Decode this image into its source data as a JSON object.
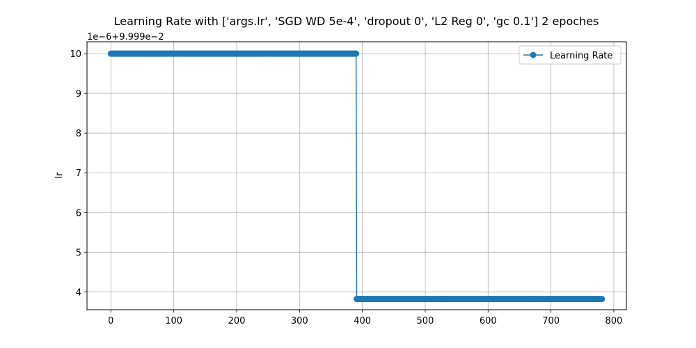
{
  "chart_data": {
    "type": "line",
    "title": "Learning Rate with ['args.lr', 'SGD WD 5e-4', 'dropout 0', 'L2 Reg 0', 'gc 0.1'] 2 epoches",
    "xlabel": "",
    "ylabel": "lr",
    "y_offset_text": "1e−6+9.999e−2",
    "xlim": [
      -38,
      820
    ],
    "ylim": [
      3.55,
      10.3
    ],
    "x_ticks": [
      0,
      100,
      200,
      300,
      400,
      500,
      600,
      700,
      800
    ],
    "y_ticks": [
      4,
      5,
      6,
      7,
      8,
      9,
      10
    ],
    "grid": true,
    "legend_position": "top-right",
    "marker": "circle",
    "series": [
      {
        "name": "Learning Rate",
        "color": "#1f77b4",
        "segments": [
          {
            "x_start": 0,
            "x_end": 390,
            "value": 10.0
          },
          {
            "x_start": 391,
            "x_end": 781,
            "value": 3.82
          }
        ]
      }
    ]
  }
}
